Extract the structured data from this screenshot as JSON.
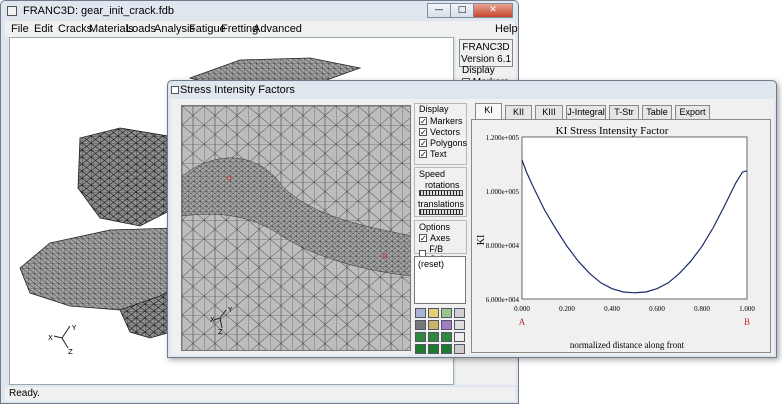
{
  "main_window": {
    "title": "FRANC3D:  gear_init_crack.fdb",
    "controls": {
      "minimize": "—",
      "maximize": "□",
      "close": "✕"
    },
    "menu": [
      "File",
      "Edit",
      "Cracks",
      "Materials",
      "Loads",
      "Analysis",
      "Fatigue",
      "Fretting",
      "Advanced"
    ],
    "help": "Help",
    "side_panel": {
      "version_line1": "FRANC3D",
      "version_line2": "Version 6.1",
      "display_label": "Display",
      "markers_label": "Markers"
    },
    "status": "Ready."
  },
  "dialog": {
    "title": "Stress Intensity Factors",
    "display": {
      "label": "Display",
      "checks": [
        {
          "label": "Markers",
          "checked": true
        },
        {
          "label": "Vectors",
          "checked": true
        },
        {
          "label": "Polygons",
          "checked": true
        },
        {
          "label": "Text",
          "checked": true
        }
      ]
    },
    "speed": {
      "label": "Speed",
      "rotations": "rotations",
      "translations": "translations"
    },
    "options": {
      "label": "Options",
      "checks": [
        {
          "label": "Axes",
          "checked": true
        },
        {
          "label": "F/B Colors",
          "checked": false
        }
      ]
    },
    "reset": "(reset)",
    "tool_colors": [
      "#a6b6d0",
      "#e3cf76",
      "#9cc48a",
      "#d0d0d0",
      "#777777",
      "#c9b46a",
      "#a07fc0",
      "#dddddd",
      "#2e8a3a",
      "#2e8a3a",
      "#2e8a3a",
      "#eeeeee",
      "#1e7a2e",
      "#1e7a2e",
      "#1e7a2e",
      "#cccccc"
    ],
    "tabs": [
      "KI",
      "KII",
      "KIII",
      "J-Integral",
      "T-Str",
      "Table",
      "Export"
    ],
    "active_tab": "KI"
  },
  "chart_data": {
    "type": "line",
    "title": "KI Stress Intensity Factor",
    "xlabel": "normalized distance along front",
    "ylabel": "KI",
    "xlim": [
      0,
      1
    ],
    "ylim": [
      60000,
      120000
    ],
    "x_ticks": [
      "0.000",
      "0.200",
      "0.400",
      "0.600",
      "0.800",
      "1.000"
    ],
    "y_ticks": [
      "6.000e+004",
      "8.000e+004",
      "1.000e+005",
      "1.200e+005"
    ],
    "x_end_labels": {
      "start": "A",
      "end": "B"
    },
    "grid": false,
    "series": [
      {
        "color": "#1a2a6c",
        "x": [
          0.0,
          0.02,
          0.05,
          0.1,
          0.15,
          0.2,
          0.25,
          0.3,
          0.35,
          0.4,
          0.45,
          0.5,
          0.55,
          0.6,
          0.65,
          0.7,
          0.75,
          0.8,
          0.85,
          0.9,
          0.95,
          0.98,
          1.0
        ],
        "y": [
          111500,
          107000,
          101500,
          93000,
          86000,
          79500,
          74000,
          69500,
          66000,
          63800,
          62600,
          62300,
          62600,
          63800,
          66000,
          69500,
          74000,
          79500,
          86500,
          94500,
          103000,
          107000,
          107500
        ]
      }
    ]
  }
}
